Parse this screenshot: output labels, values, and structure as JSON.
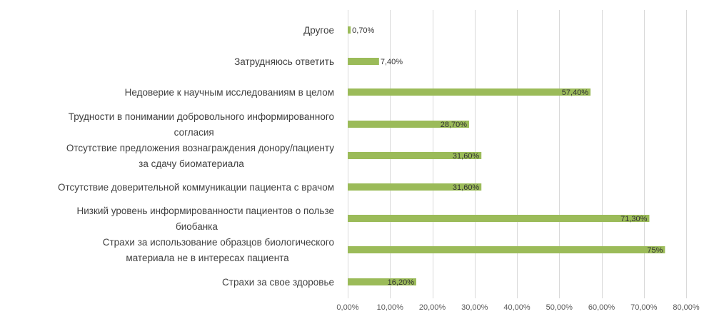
{
  "chart_data": {
    "type": "bar",
    "orientation": "horizontal",
    "categories": [
      [
        "Другое"
      ],
      [
        "Затрудняюсь ответить"
      ],
      [
        "Недоверие к научным исследованиям в целом"
      ],
      [
        "Трудности в понимании добровольного информированного",
        "согласия"
      ],
      [
        "Отсутствие предложения вознаграждения донору/пациенту",
        "за сдачу биоматериала"
      ],
      [
        "Отсутствие доверительной коммуникации пациента с врачом"
      ],
      [
        "Низкий уровень информированности пациентов о пользе",
        "биобанка"
      ],
      [
        "Страхи за использование образцов биологического",
        "материала не в интересах пациента"
      ],
      [
        "Страхи за свое здоровье"
      ]
    ],
    "values": [
      0.7,
      7.4,
      57.4,
      28.7,
      31.6,
      31.6,
      71.3,
      75,
      16.2
    ],
    "value_labels": [
      "0,70%",
      "7,40%",
      "57,40%",
      "28,70%",
      "31,60%",
      "31,60%",
      "71,30%",
      "75%",
      "16,20%"
    ],
    "xlim": [
      0,
      80
    ],
    "x_ticks": [
      0,
      10,
      20,
      30,
      40,
      50,
      60,
      70,
      80
    ],
    "x_tick_labels": [
      "0,00%",
      "10,00%",
      "20,00%",
      "30,00%",
      "40,00%",
      "50,00%",
      "60,00%",
      "70,00%",
      "80,00%"
    ],
    "grid": true,
    "bar_color": "#9bbb59",
    "title": "",
    "xlabel": "",
    "ylabel": ""
  }
}
